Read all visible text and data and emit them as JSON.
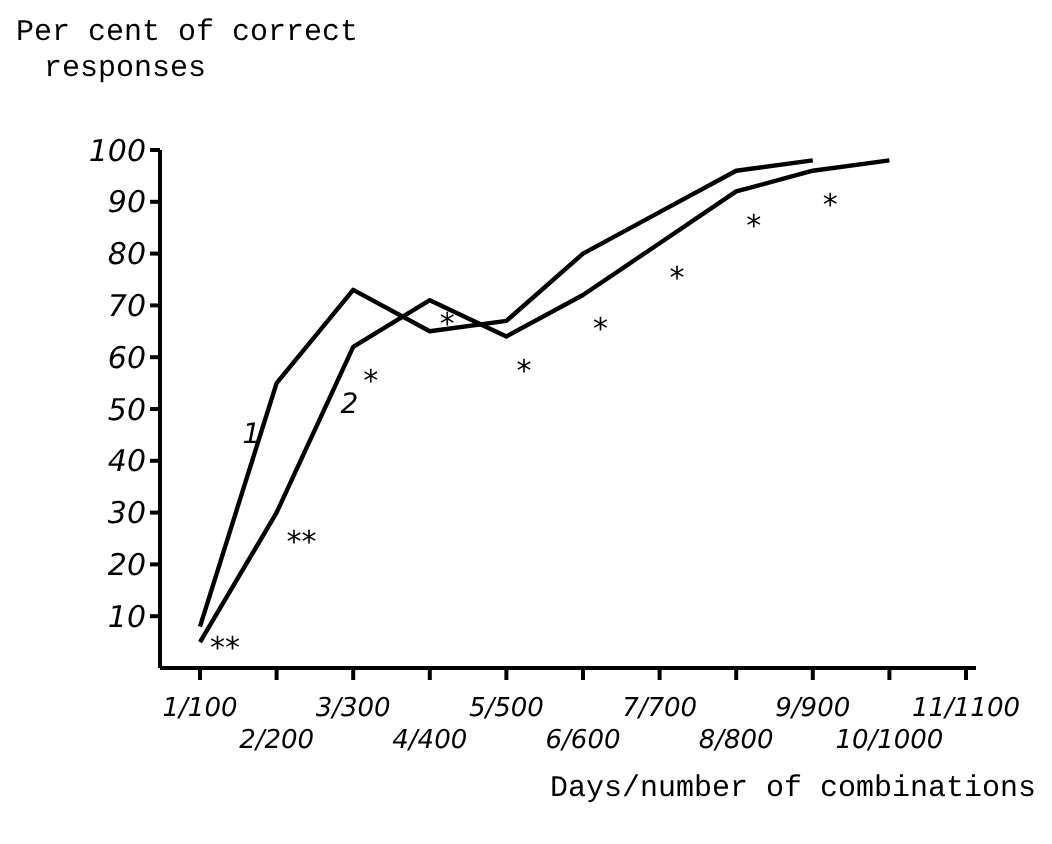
{
  "chart_data": {
    "type": "line",
    "ylabel": "Per cent of correct\nresponses",
    "xlabel": "Days/number of combinations",
    "categories": [
      "1/100",
      "2/200",
      "3/300",
      "4/400",
      "5/500",
      "6/600",
      "7/700",
      "8/800",
      "9/900",
      "10/1000",
      "11/1100"
    ],
    "series": [
      {
        "name": "1",
        "color": "#000000",
        "values": [
          8,
          55,
          73,
          65,
          67,
          80,
          88,
          96,
          98,
          null,
          null
        ]
      },
      {
        "name": "2",
        "color": "#000000",
        "values": [
          5,
          30,
          62,
          71,
          64,
          72,
          82,
          92,
          96,
          98,
          null
        ]
      }
    ],
    "ylim": [
      0,
      100
    ],
    "yticks": [
      10,
      20,
      30,
      40,
      50,
      60,
      70,
      80,
      90,
      100
    ],
    "annotations": [
      {
        "text": "**",
        "x": "1/100",
        "y": 4
      },
      {
        "text": "**",
        "x": "2/200",
        "y": 29
      },
      {
        "text": "*",
        "x": "3/300",
        "y": 60
      },
      {
        "text": "*",
        "x": "4/400",
        "y": 71
      },
      {
        "text": "*",
        "x": "5/500",
        "y": 62
      },
      {
        "text": "*",
        "x": "6/600",
        "y": 70
      },
      {
        "text": "*",
        "x": "7/700",
        "y": 80
      },
      {
        "text": "*",
        "x": "8/800",
        "y": 90
      },
      {
        "text": "*",
        "x": "9/900",
        "y": 94
      }
    ],
    "grid": false,
    "legend": false,
    "marker": "none",
    "line_style": "solid"
  }
}
